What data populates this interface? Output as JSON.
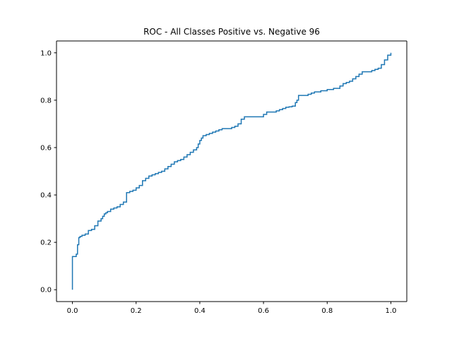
{
  "chart_data": {
    "type": "line",
    "title": "ROC - All Classes Positive vs. Negative 96",
    "xlabel": "",
    "ylabel": "",
    "xlim": [
      -0.05,
      1.05
    ],
    "ylim": [
      -0.05,
      1.05
    ],
    "xticks": [
      0.0,
      0.2,
      0.4,
      0.6,
      0.8,
      1.0
    ],
    "yticks": [
      0.0,
      0.2,
      0.4,
      0.6,
      0.8,
      1.0
    ],
    "xtick_labels": [
      "0.0",
      "0.2",
      "0.4",
      "0.6",
      "0.8",
      "1.0"
    ],
    "ytick_labels": [
      "0.0",
      "0.2",
      "0.4",
      "0.6",
      "0.8",
      "1.0"
    ],
    "grid": false,
    "series": [
      {
        "name": "ROC",
        "color": "#1f77b4",
        "step": true,
        "x": [
          0.0,
          0.0,
          0.0,
          0.004,
          0.012,
          0.016,
          0.02,
          0.024,
          0.03,
          0.04,
          0.05,
          0.06,
          0.07,
          0.08,
          0.09,
          0.095,
          0.1,
          0.105,
          0.11,
          0.12,
          0.13,
          0.14,
          0.15,
          0.16,
          0.17,
          0.18,
          0.19,
          0.2,
          0.21,
          0.22,
          0.23,
          0.24,
          0.25,
          0.26,
          0.27,
          0.28,
          0.29,
          0.3,
          0.31,
          0.32,
          0.33,
          0.34,
          0.35,
          0.36,
          0.37,
          0.38,
          0.39,
          0.395,
          0.4,
          0.405,
          0.41,
          0.42,
          0.43,
          0.44,
          0.45,
          0.46,
          0.47,
          0.48,
          0.5,
          0.51,
          0.52,
          0.53,
          0.54,
          0.55,
          0.6,
          0.61,
          0.64,
          0.65,
          0.66,
          0.67,
          0.68,
          0.69,
          0.7,
          0.705,
          0.71,
          0.74,
          0.75,
          0.76,
          0.78,
          0.8,
          0.82,
          0.84,
          0.85,
          0.86,
          0.87,
          0.88,
          0.89,
          0.9,
          0.91,
          0.94,
          0.95,
          0.96,
          0.97,
          0.98,
          0.99,
          1.0
        ],
        "y": [
          0.0,
          0.13,
          0.14,
          0.14,
          0.15,
          0.19,
          0.22,
          0.225,
          0.23,
          0.235,
          0.25,
          0.255,
          0.27,
          0.29,
          0.3,
          0.31,
          0.32,
          0.325,
          0.33,
          0.34,
          0.345,
          0.35,
          0.36,
          0.37,
          0.41,
          0.415,
          0.42,
          0.43,
          0.44,
          0.46,
          0.47,
          0.48,
          0.485,
          0.49,
          0.495,
          0.5,
          0.51,
          0.52,
          0.53,
          0.54,
          0.545,
          0.55,
          0.56,
          0.57,
          0.58,
          0.59,
          0.6,
          0.615,
          0.63,
          0.64,
          0.65,
          0.655,
          0.66,
          0.665,
          0.67,
          0.675,
          0.68,
          0.68,
          0.685,
          0.69,
          0.7,
          0.72,
          0.73,
          0.73,
          0.74,
          0.75,
          0.755,
          0.76,
          0.765,
          0.77,
          0.772,
          0.775,
          0.79,
          0.8,
          0.82,
          0.825,
          0.83,
          0.835,
          0.84,
          0.845,
          0.85,
          0.86,
          0.87,
          0.875,
          0.88,
          0.89,
          0.9,
          0.91,
          0.92,
          0.925,
          0.93,
          0.935,
          0.95,
          0.97,
          0.99,
          1.0
        ]
      }
    ]
  }
}
